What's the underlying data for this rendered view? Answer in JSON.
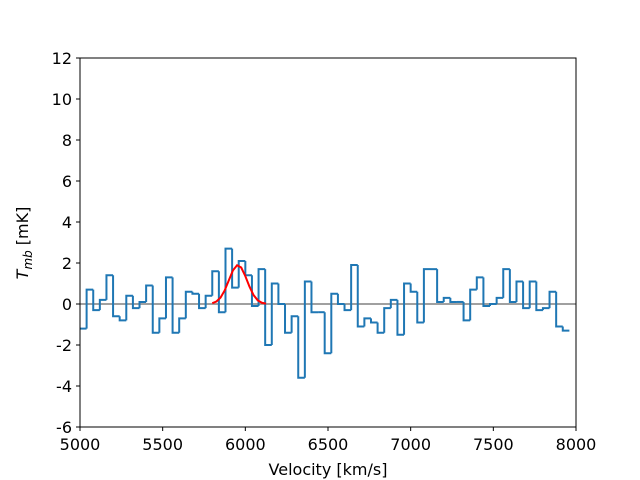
{
  "chart_data": {
    "type": "step",
    "xlabel": "Velocity [km/s]",
    "ylabel": "T",
    "ylabel_subscript": "mb",
    "ylabel_unit": "[mK]",
    "xlim": [
      5000,
      8000
    ],
    "xticks": [
      5000,
      5500,
      6000,
      6500,
      7000,
      7500,
      8000
    ],
    "ylim": [
      -6,
      12
    ],
    "yticks": [
      -6,
      -4,
      -2,
      0,
      2,
      4,
      6,
      8,
      10,
      12
    ],
    "reference_line": 0,
    "reference_color": "#808080",
    "series": [
      {
        "color": "#1f77b4",
        "bins": [
          5000,
          5040,
          5080,
          5120,
          5160,
          5200,
          5240,
          5280,
          5320,
          5360,
          5400,
          5440,
          5480,
          5520,
          5560,
          5600,
          5640,
          5680,
          5720,
          5760,
          5800,
          5840,
          5880,
          5920,
          5960,
          6000,
          6040,
          6080,
          6120,
          6160,
          6200,
          6240,
          6280,
          6320,
          6360,
          6400,
          6440,
          6480,
          6520,
          6560,
          6600,
          6640,
          6680,
          6720,
          6760,
          6800,
          6840,
          6880,
          6920,
          6960,
          7000,
          7040,
          7080,
          7120,
          7160,
          7200,
          7240,
          7280,
          7320,
          7360,
          7400,
          7440,
          7480,
          7520,
          7560,
          7600,
          7640,
          7680,
          7720,
          7760,
          7800,
          7840,
          7880,
          7920,
          7960
        ],
        "values": [
          -1.2,
          0.7,
          -0.3,
          0.2,
          1.4,
          -0.6,
          -0.8,
          0.4,
          -0.2,
          0.1,
          0.9,
          -1.4,
          -0.7,
          1.3,
          -1.4,
          -0.7,
          0.6,
          0.5,
          -0.2,
          0.4,
          1.6,
          -0.4,
          2.7,
          0.8,
          2.1,
          1.4,
          -0.1,
          1.7,
          -2.0,
          1.0,
          0.0,
          -1.4,
          -0.6,
          -3.6,
          1.1,
          -0.4,
          -0.4,
          -2.4,
          0.5,
          0.0,
          -0.3,
          1.9,
          -1.1,
          -0.7,
          -0.9,
          -1.4,
          -0.2,
          0.2,
          -1.5,
          1.0,
          0.6,
          -0.9,
          1.7,
          1.7,
          0.1,
          0.3,
          0.1,
          0.1,
          -0.8,
          0.7,
          1.3,
          -0.1,
          0.0,
          0.3,
          1.7,
          0.1,
          1.1,
          -0.2,
          1.1,
          -0.3,
          -0.2,
          0.6,
          -1.1,
          -1.3
        ]
      },
      {
        "type": "line",
        "color": "#ff0000",
        "x": [
          5800,
          5825,
          5850,
          5875,
          5900,
          5925,
          5950,
          5975,
          6000,
          6025,
          6050,
          6075,
          6100,
          6125
        ],
        "values": [
          0.04,
          0.12,
          0.31,
          0.66,
          1.15,
          1.64,
          1.89,
          1.78,
          1.36,
          0.85,
          0.43,
          0.18,
          0.06,
          0.02
        ]
      }
    ]
  }
}
